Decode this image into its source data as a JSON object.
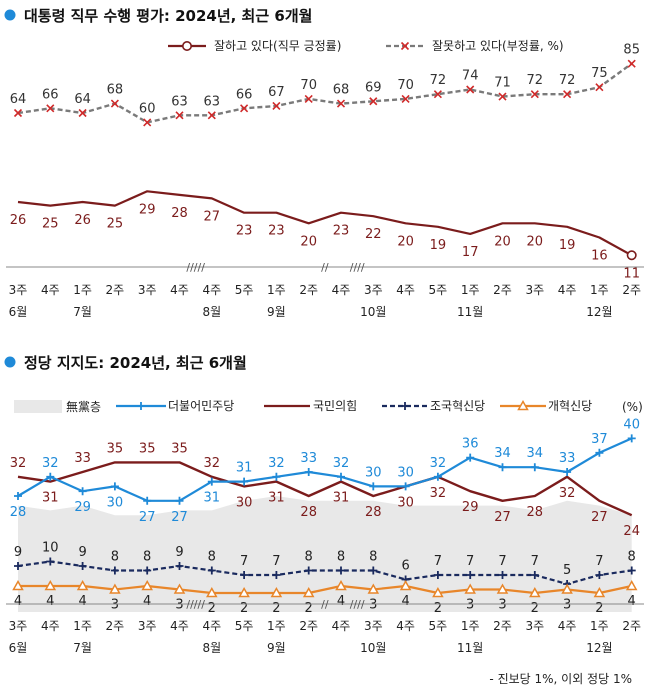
{
  "x_ticks": [
    "3주",
    "4주",
    "1주",
    "2주",
    "3주",
    "4주",
    "4주",
    "5주",
    "1주",
    "2주",
    "4주",
    "3주",
    "4주",
    "5주",
    "1주",
    "2주",
    "3주",
    "4주",
    "1주",
    "2주"
  ],
  "months": [
    {
      "label": "6월",
      "index": 0
    },
    {
      "label": "7월",
      "index": 2
    },
    {
      "label": "8월",
      "index": 6
    },
    {
      "label": "9월",
      "index": 8
    },
    {
      "label": "10월",
      "index": 11
    },
    {
      "label": "11월",
      "index": 14
    },
    {
      "label": "12월",
      "index": 18
    }
  ],
  "break_marks": [
    {
      "label": "/////",
      "between": [
        5,
        6
      ]
    },
    {
      "label": "//",
      "between": [
        9,
        10
      ]
    },
    {
      "label": "////",
      "between": [
        10,
        11
      ]
    }
  ],
  "chart_data": [
    {
      "type": "line",
      "title": "대통령 직무 수행 평가: 2024년, 최근 6개월",
      "series": [
        {
          "name": "잘하고 있다(직무 긍정률)",
          "color": "#7b1c1c",
          "marker": "circle",
          "values": [
            26,
            25,
            26,
            25,
            29,
            28,
            27,
            23,
            23,
            20,
            23,
            22,
            20,
            19,
            17,
            20,
            20,
            19,
            16,
            11
          ]
        },
        {
          "name": "잘못하고 있다(부정률, %)",
          "color": "#7a7a7a",
          "marker": "x",
          "dash": true,
          "values": [
            64,
            66,
            64,
            68,
            60,
            63,
            63,
            66,
            67,
            70,
            68,
            69,
            70,
            72,
            74,
            71,
            72,
            72,
            75,
            85
          ]
        }
      ]
    },
    {
      "type": "line",
      "title": "정당 지지도: 2024년, 최근 6개월",
      "unit": "(%)",
      "series": [
        {
          "name": "無黨층",
          "color": "#e8e8e8",
          "style": "area",
          "values": [
            26,
            25,
            26,
            24,
            24,
            25,
            25,
            27,
            28,
            27,
            27,
            27,
            26,
            26,
            26,
            26,
            25,
            27,
            26,
            24
          ]
        },
        {
          "name": "더불어민주당",
          "color": "#1f8ad8",
          "marker": "plus",
          "values": [
            28,
            32,
            29,
            30,
            27,
            27,
            31,
            31,
            32,
            33,
            32,
            30,
            30,
            32,
            36,
            34,
            34,
            33,
            37,
            40
          ]
        },
        {
          "name": "국민의힘",
          "color": "#7b1c1c",
          "values": [
            32,
            31,
            33,
            35,
            35,
            35,
            32,
            30,
            31,
            28,
            31,
            28,
            30,
            32,
            29,
            27,
            28,
            32,
            27,
            24
          ]
        },
        {
          "name": "조국혁신당",
          "color": "#1a2a5e",
          "marker": "plus",
          "dash": true,
          "values": [
            9,
            10,
            9,
            8,
            8,
            9,
            8,
            7,
            7,
            8,
            8,
            8,
            6,
            7,
            7,
            7,
            7,
            5,
            7,
            8
          ]
        },
        {
          "name": "개혁신당",
          "color": "#e8862a",
          "marker": "triangle",
          "values": [
            4,
            4,
            4,
            3,
            4,
            3,
            2,
            2,
            2,
            2,
            4,
            3,
            4,
            2,
            3,
            3,
            2,
            3,
            2,
            4
          ]
        }
      ]
    }
  ],
  "footnote": "- 진보당 1%, 이외 정당 1%"
}
